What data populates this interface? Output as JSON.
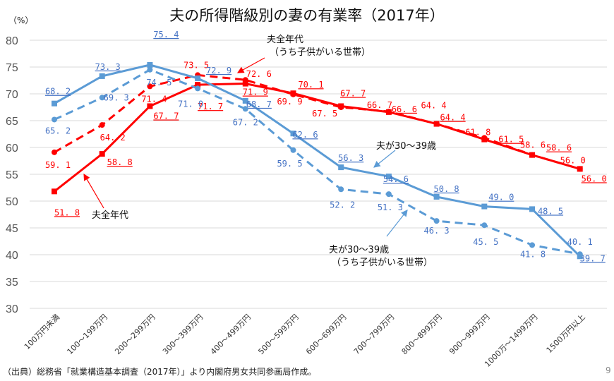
{
  "page_number": "9",
  "source": "（出典）総務省「就業構造基本調査（2017年）」より内閣府男女共同参画局作成。",
  "chart_data": {
    "type": "line",
    "title": "夫の所得階級別の妻の有業率（2017年）",
    "ylabel": "（%）",
    "ylim": [
      30,
      80
    ],
    "yticks": [
      30,
      35,
      40,
      45,
      50,
      55,
      60,
      65,
      70,
      75,
      80
    ],
    "grid": true,
    "categories": [
      "100万円未満",
      "100～199万円",
      "200～299万円",
      "300～399万円",
      "400～499万円",
      "500～599万円",
      "600～699万円",
      "700～799万円",
      "800～899万円",
      "900～999万円",
      "1000万～1499万円",
      "1500万円以上"
    ],
    "series": [
      {
        "name": "夫全年代",
        "color": "#ff0000",
        "style": "solid",
        "marker": "square",
        "underline_labels": true,
        "values": [
          51.8,
          58.8,
          67.7,
          71.7,
          71.9,
          70.1,
          67.7,
          66.6,
          64.4,
          61.5,
          58.6,
          56.0
        ]
      },
      {
        "name": "夫全年代（うち子供がいる世帯）",
        "color": "#ff0000",
        "style": "dashed",
        "marker": "circle",
        "underline_labels": false,
        "values": [
          59.1,
          64.2,
          71.4,
          73.5,
          72.6,
          69.9,
          67.5,
          66.7,
          64.4,
          61.8,
          58.6,
          56.0
        ]
      },
      {
        "name": "夫が30～39歳",
        "color": "#5b9bd5",
        "style": "solid",
        "marker": "square",
        "underline_labels": true,
        "values": [
          68.2,
          73.3,
          75.4,
          72.9,
          68.7,
          62.6,
          56.3,
          54.6,
          50.8,
          49.0,
          48.5,
          39.7
        ]
      },
      {
        "name": "夫が30～39歳（うち子供がいる世帯）",
        "color": "#5b9bd5",
        "style": "dashed",
        "marker": "circle",
        "underline_labels": false,
        "values": [
          65.2,
          69.3,
          74.5,
          71.0,
          67.2,
          59.5,
          52.2,
          51.3,
          46.3,
          45.5,
          41.8,
          40.1
        ]
      }
    ],
    "annotations": {
      "all_ages": "夫全年代",
      "all_ages_kids_1": "夫全年代",
      "all_ages_kids_2": "（うち子供がいる世帯）",
      "age30s": "夫が30～39歳",
      "age30s_kids_1": "夫が30～39歳",
      "age30s_kids_2": "（うち子供がいる世帯）"
    },
    "label_color_red": "#ff0000",
    "label_color_blue": "#4472c4"
  }
}
